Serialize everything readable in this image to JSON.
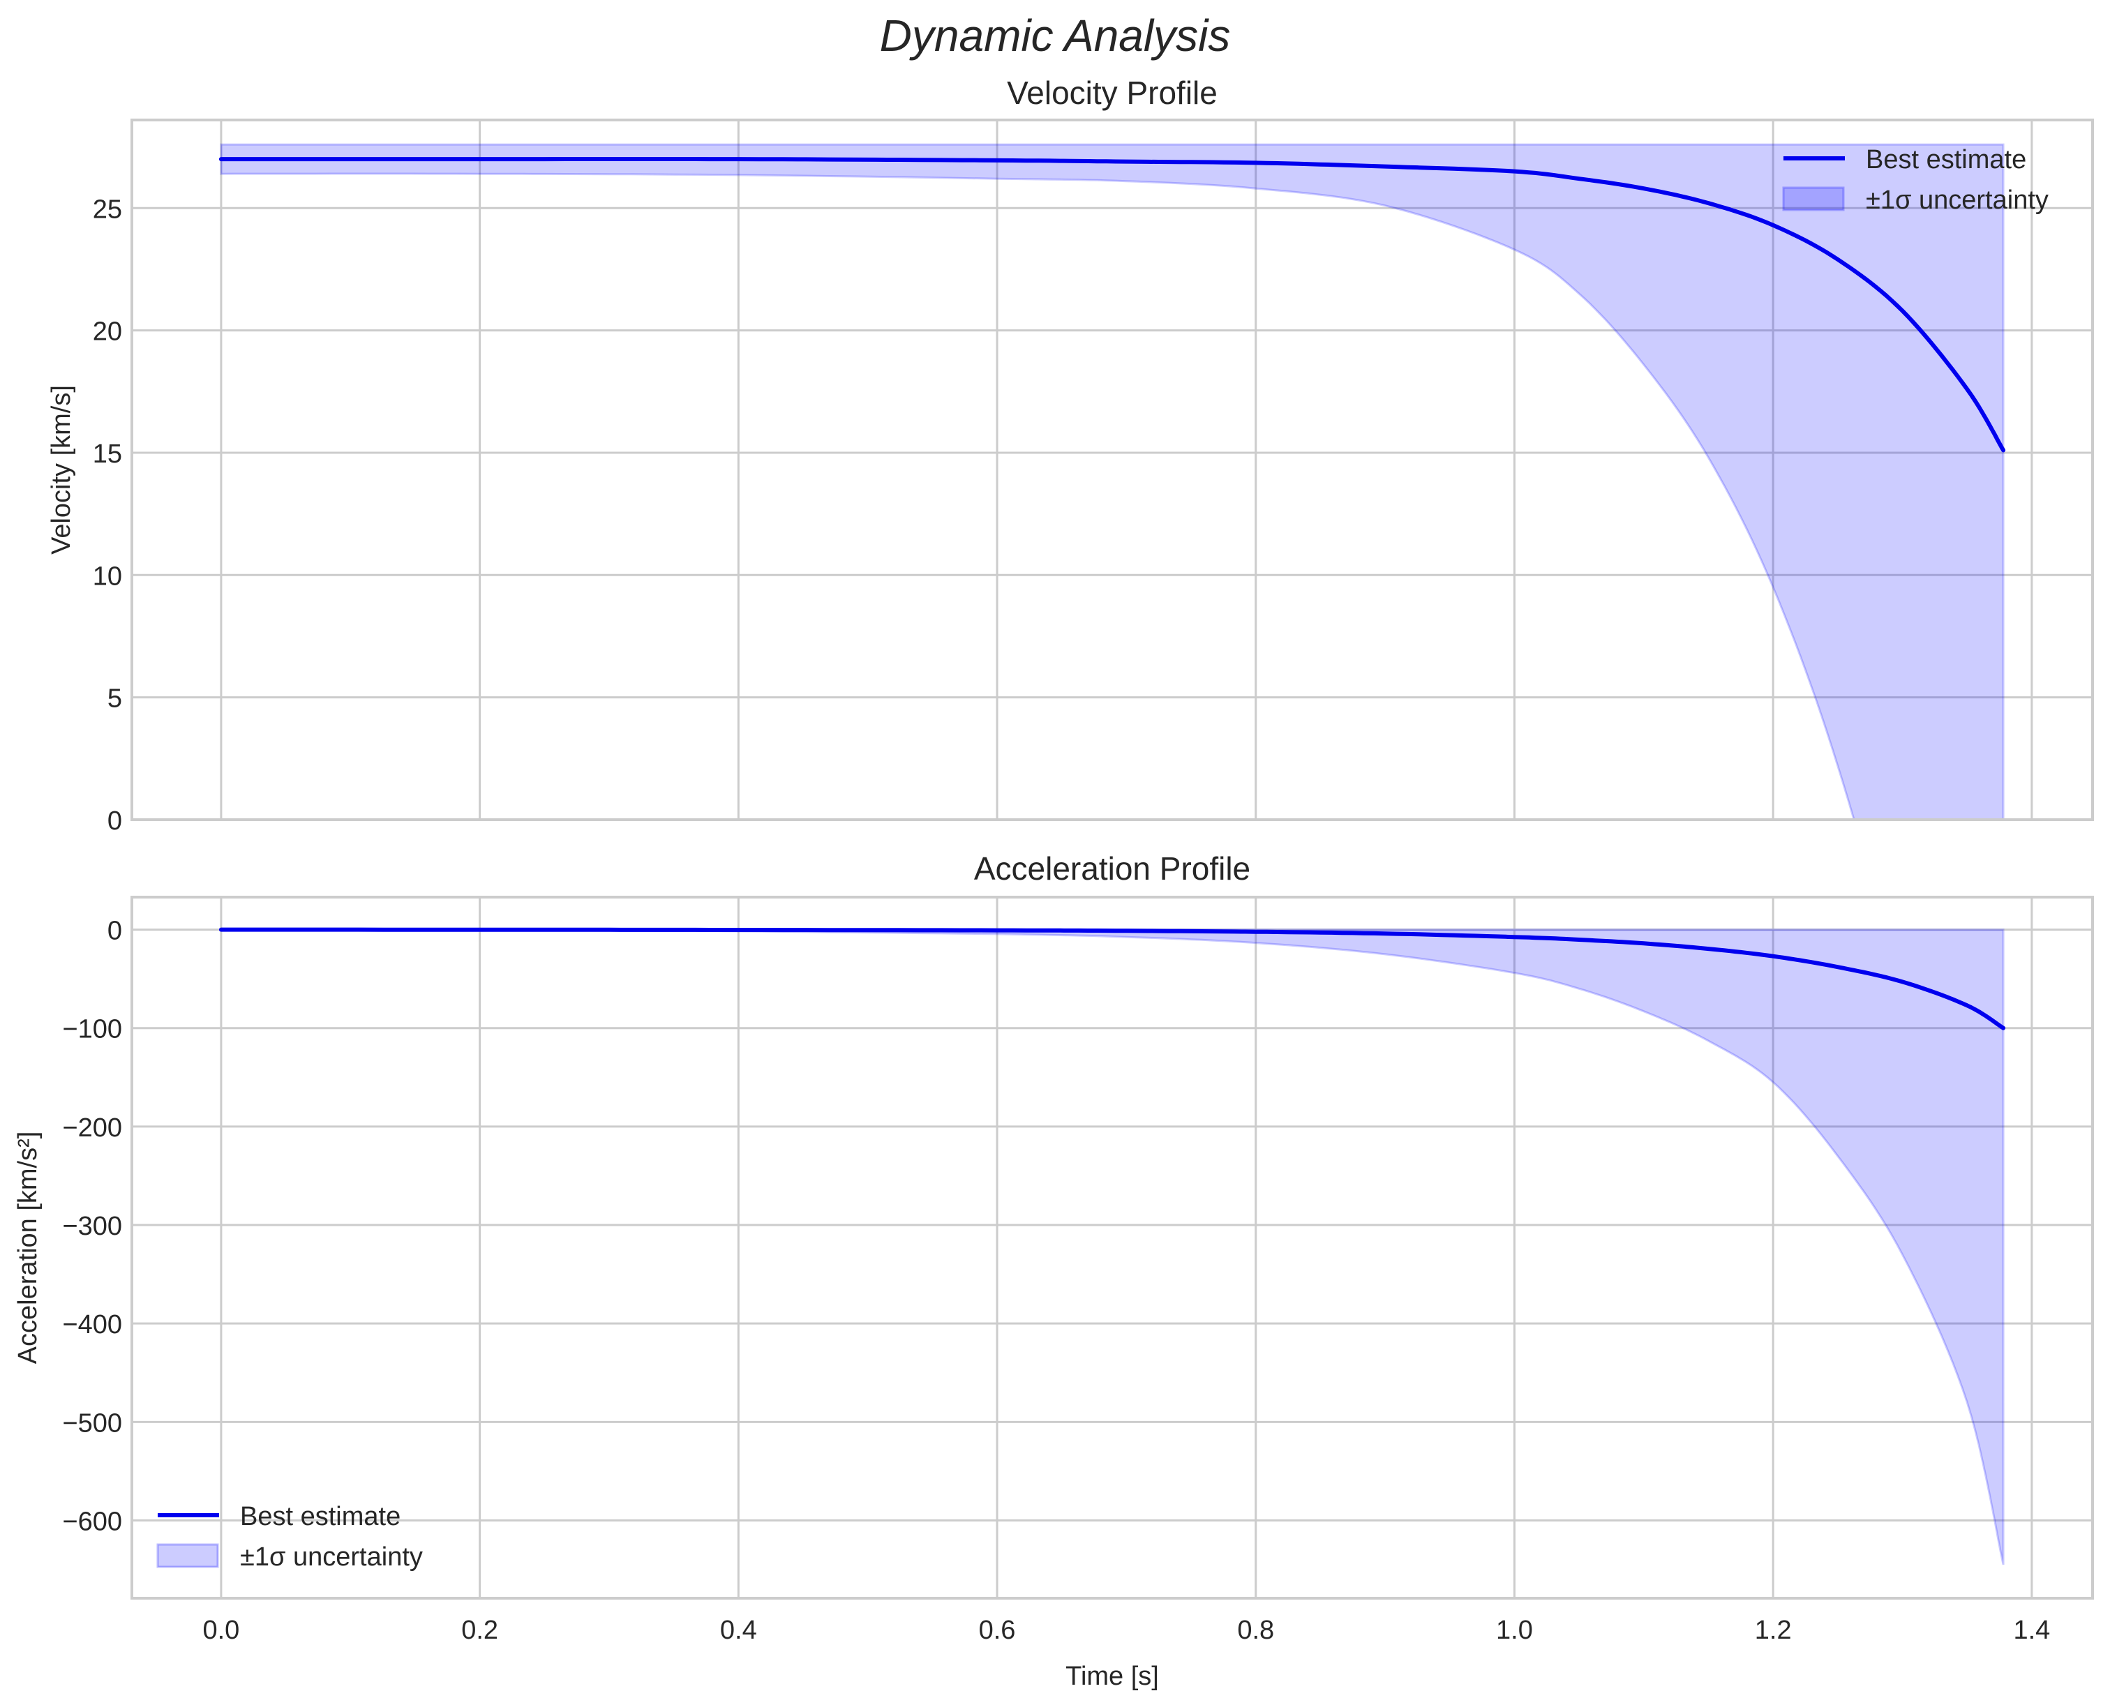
{
  "figure": {
    "suptitle": "Dynamic Analysis"
  },
  "chart_data": [
    {
      "type": "line",
      "title": "Velocity Profile",
      "xlabel": "",
      "ylabel": "Velocity [km/s]",
      "xlim": [
        -0.069,
        1.447
      ],
      "ylim": [
        0,
        28.6
      ],
      "xticks": [
        0.0,
        0.2,
        0.4,
        0.6,
        0.8,
        1.0,
        1.2,
        1.4
      ],
      "xticklabels_visible": false,
      "yticks": [
        0,
        5,
        10,
        15,
        20,
        25
      ],
      "yticklabels": [
        "0",
        "5",
        "10",
        "15",
        "20",
        "25"
      ],
      "grid": true,
      "legend_position": "upper right",
      "legend": [
        "Best estimate",
        "±1σ uncertainty"
      ],
      "x": [
        0.0,
        0.2,
        0.4,
        0.6,
        0.7,
        0.8,
        0.9,
        1.0,
        1.05,
        1.1,
        1.15,
        1.2,
        1.25,
        1.3,
        1.35,
        1.378
      ],
      "series": [
        {
          "name": "Best estimate",
          "role": "line",
          "color": "#0000ee",
          "values": [
            27.0,
            27.0,
            27.0,
            26.95,
            26.9,
            26.85,
            26.7,
            26.5,
            26.2,
            25.8,
            25.2,
            24.3,
            22.9,
            20.8,
            17.6,
            15.1
          ]
        },
        {
          "name": "±1σ uncertainty (upper)",
          "role": "band_upper",
          "color": "#0000ff",
          "alpha": 0.2,
          "values": [
            27.6,
            27.6,
            27.6,
            27.6,
            27.6,
            27.6,
            27.6,
            27.6,
            27.6,
            27.6,
            27.6,
            27.6,
            27.6,
            27.6,
            27.6,
            27.6
          ]
        },
        {
          "name": "±1σ uncertainty (lower)",
          "role": "band_lower",
          "color": "#0000ff",
          "alpha": 0.2,
          "values": [
            26.4,
            26.4,
            26.35,
            26.2,
            26.1,
            25.8,
            25.1,
            23.3,
            21.5,
            18.6,
            14.8,
            9.5,
            2.2,
            -7.5,
            -20.0,
            -28.0
          ]
        }
      ]
    },
    {
      "type": "line",
      "title": "Acceleration Profile",
      "xlabel": "Time [s]",
      "ylabel": "Acceleration [km/s²]",
      "xlim": [
        -0.069,
        1.447
      ],
      "ylim": [
        -679,
        33
      ],
      "xticks": [
        0.0,
        0.2,
        0.4,
        0.6,
        0.8,
        1.0,
        1.2,
        1.4
      ],
      "xticklabels": [
        "0.0",
        "0.2",
        "0.4",
        "0.6",
        "0.8",
        "1.0",
        "1.2",
        "1.4"
      ],
      "yticks": [
        0,
        -100,
        -200,
        -300,
        -400,
        -500,
        -600
      ],
      "yticklabels": [
        "0",
        "−100",
        "−200",
        "−300",
        "−400",
        "−500",
        "−600"
      ],
      "grid": true,
      "legend_position": "lower left",
      "legend": [
        "Best estimate",
        "±1σ uncertainty"
      ],
      "x": [
        0.0,
        0.2,
        0.4,
        0.6,
        0.7,
        0.8,
        0.9,
        1.0,
        1.05,
        1.1,
        1.15,
        1.2,
        1.25,
        1.3,
        1.35,
        1.378
      ],
      "series": [
        {
          "name": "Best estimate",
          "role": "line",
          "color": "#0000ee",
          "values": [
            0,
            -0.1,
            -0.3,
            -0.7,
            -1.2,
            -2.2,
            -4.0,
            -7.5,
            -10.2,
            -14.0,
            -19.5,
            -27.0,
            -38.0,
            -53.0,
            -77.0,
            -100.0
          ]
        },
        {
          "name": "±1σ uncertainty (upper)",
          "role": "band_upper",
          "color": "#0000ff",
          "alpha": 0.2,
          "values": [
            0,
            0,
            0,
            0,
            0,
            0,
            0,
            0,
            0,
            0,
            0,
            0,
            0,
            0,
            0,
            0
          ]
        },
        {
          "name": "±1σ uncertainty (lower)",
          "role": "band_lower",
          "color": "#0000ff",
          "alpha": 0.2,
          "values": [
            0,
            -0.6,
            -1.8,
            -4.5,
            -7.5,
            -13.5,
            -25.0,
            -44.0,
            -60.0,
            -83.0,
            -113.0,
            -155.0,
            -230.0,
            -330.0,
            -480.0,
            -645.0
          ]
        }
      ]
    }
  ]
}
